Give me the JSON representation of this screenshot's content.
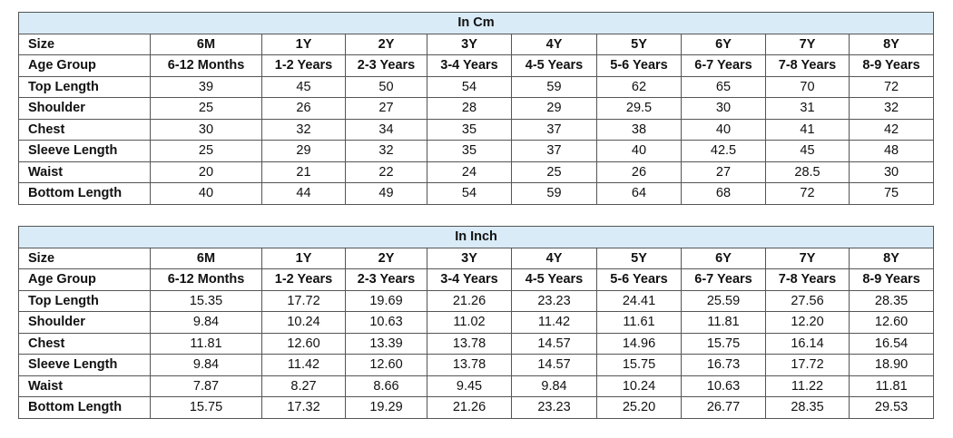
{
  "tables": [
    {
      "title": "In Cm",
      "rows": [
        [
          "Size",
          "6M",
          "1Y",
          "2Y",
          "3Y",
          "4Y",
          "5Y",
          "6Y",
          "7Y",
          "8Y"
        ],
        [
          "Age Group",
          "6-12 Months",
          "1-2 Years",
          "2-3 Years",
          "3-4 Years",
          "4-5 Years",
          "5-6 Years",
          "6-7 Years",
          "7-8 Years",
          "8-9 Years"
        ],
        [
          "Top Length",
          "39",
          "45",
          "50",
          "54",
          "59",
          "62",
          "65",
          "70",
          "72"
        ],
        [
          "Shoulder",
          "25",
          "26",
          "27",
          "28",
          "29",
          "29.5",
          "30",
          "31",
          "32"
        ],
        [
          "Chest",
          "30",
          "32",
          "34",
          "35",
          "37",
          "38",
          "40",
          "41",
          "42"
        ],
        [
          "Sleeve Length",
          "25",
          "29",
          "32",
          "35",
          "37",
          "40",
          "42.5",
          "45",
          "48"
        ],
        [
          "Waist",
          "20",
          "21",
          "22",
          "24",
          "25",
          "26",
          "27",
          "28.5",
          "30"
        ],
        [
          "Bottom Length",
          "40",
          "44",
          "49",
          "54",
          "59",
          "64",
          "68",
          "72",
          "75"
        ]
      ]
    },
    {
      "title": "In Inch",
      "rows": [
        [
          "Size",
          "6M",
          "1Y",
          "2Y",
          "3Y",
          "4Y",
          "5Y",
          "6Y",
          "7Y",
          "8Y"
        ],
        [
          "Age Group",
          "6-12 Months",
          "1-2 Years",
          "2-3 Years",
          "3-4 Years",
          "4-5 Years",
          "5-6 Years",
          "6-7 Years",
          "7-8 Years",
          "8-9 Years"
        ],
        [
          "Top Length",
          "15.35",
          "17.72",
          "19.69",
          "21.26",
          "23.23",
          "24.41",
          "25.59",
          "27.56",
          "28.35"
        ],
        [
          "Shoulder",
          "9.84",
          "10.24",
          "10.63",
          "11.02",
          "11.42",
          "11.61",
          "11.81",
          "12.20",
          "12.60"
        ],
        [
          "Chest",
          "11.81",
          "12.60",
          "13.39",
          "13.78",
          "14.57",
          "14.96",
          "15.75",
          "16.14",
          "16.54"
        ],
        [
          "Sleeve Length",
          "9.84",
          "11.42",
          "12.60",
          "13.78",
          "14.57",
          "15.75",
          "16.73",
          "17.72",
          "18.90"
        ],
        [
          "Waist",
          "7.87",
          "8.27",
          "8.66",
          "9.45",
          "9.84",
          "10.24",
          "10.63",
          "11.22",
          "11.81"
        ],
        [
          "Bottom Length",
          "15.75",
          "17.32",
          "19.29",
          "21.26",
          "23.23",
          "25.20",
          "26.77",
          "28.35",
          "29.53"
        ]
      ]
    }
  ]
}
